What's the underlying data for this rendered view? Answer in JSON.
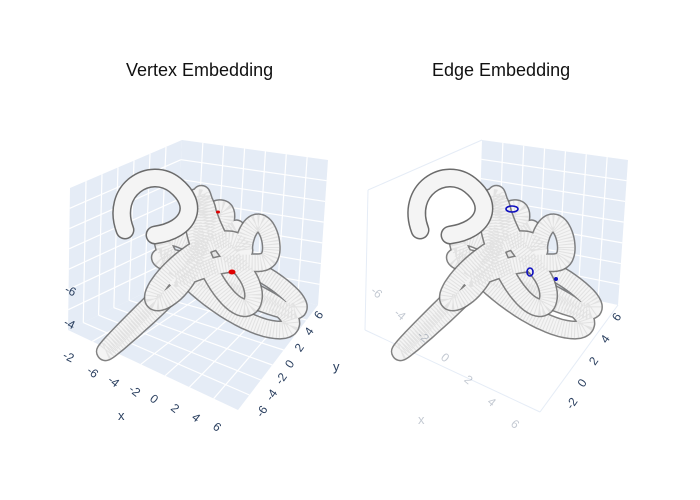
{
  "chart_data": [
    {
      "type": "scatter3d",
      "title": "Vertex Embedding",
      "axes": {
        "x": {
          "label": "x",
          "ticks": [
            "-6",
            "-4",
            "-2",
            "0",
            "2",
            "4",
            "6"
          ]
        },
        "y": {
          "label": "y",
          "ticks": [
            "-6",
            "-4",
            "-2",
            "0",
            "2",
            "4",
            "6"
          ]
        },
        "z": {
          "label": "",
          "ticks": [
            "-6",
            "-4",
            "-2"
          ]
        }
      },
      "grid": true,
      "series": [
        {
          "color": "#d9d9d9",
          "description_points": "dense tube-shaped knot"
        },
        {
          "color": "#e00000",
          "highlight_count": 2
        }
      ]
    },
    {
      "type": "scatter3d",
      "title": "Edge Embedding",
      "axes": {
        "x": {
          "label": "x",
          "ticks": [
            "-6",
            "-4",
            "-2",
            "0",
            "2",
            "4",
            "6"
          ]
        },
        "y": {
          "label": "",
          "ticks": [
            "-2",
            "0",
            "2",
            "4",
            "6"
          ]
        },
        "z": {
          "label": "",
          "ticks": []
        }
      },
      "grid": true,
      "series": [
        {
          "color": "#d9d9d9"
        },
        {
          "color": "#1010c0",
          "highlight_count": 3
        }
      ]
    }
  ],
  "colors": {
    "pane_back": "#e5ecf6",
    "pane_grid": "#ffffff",
    "tick_text": "#2a3f5f",
    "knot": "#d9d9d9",
    "highlight_left": "#e00000",
    "highlight_right": "#1010c0"
  }
}
